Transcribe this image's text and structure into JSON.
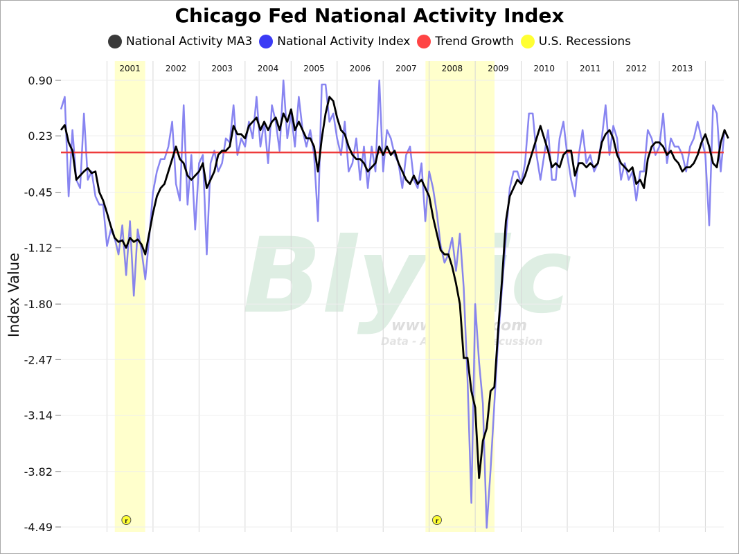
{
  "chart_data": {
    "type": "line",
    "title": "Chicago Fed National Activity Index",
    "ylabel": "Index Value",
    "xlabel": "",
    "ylim": [
      -4.49,
      0.9
    ],
    "yticks": [
      "0.90",
      "0.23",
      "-0.45",
      "-1.12",
      "-1.80",
      "-2.47",
      "-3.14",
      "-3.82",
      "-4.49"
    ],
    "x_range": [
      2000.0,
      2014.4
    ],
    "year_labels": [
      {
        "year": 2001,
        "label": "2001"
      },
      {
        "year": 2002,
        "label": "2002"
      },
      {
        "year": 2003,
        "label": "2003"
      },
      {
        "year": 2004,
        "label": "2004"
      },
      {
        "year": 2005,
        "label": "2005"
      },
      {
        "year": 2006,
        "label": "2006"
      },
      {
        "year": 2007,
        "label": "2007"
      },
      {
        "year": 2008,
        "label": "2008"
      },
      {
        "year": 2009,
        "label": "2009"
      },
      {
        "year": 2010,
        "label": "2010"
      },
      {
        "year": 2011,
        "label": "2011"
      },
      {
        "year": 2012,
        "label": "2012"
      },
      {
        "year": 2013,
        "label": "2013"
      }
    ],
    "grid": true,
    "legend_position": "top-center",
    "recessions": [
      {
        "start": 2001.17,
        "end": 2001.83,
        "marker": "r"
      },
      {
        "start": 2007.92,
        "end": 2009.42,
        "marker": "r"
      }
    ],
    "trend_growth": 0.03,
    "series": [
      {
        "name": "National Activity MA3",
        "color": "#000000"
      },
      {
        "name": "National Activity Index",
        "color": "#7b78f0"
      },
      {
        "name": "Trend Growth",
        "color": "#ee3b3b"
      },
      {
        "name": "U.S. Recessions",
        "color": "#ffff33"
      }
    ],
    "monthly": {
      "start": "2000-01",
      "index": [
        0.55,
        0.7,
        -0.5,
        0.3,
        -0.3,
        -0.4,
        0.5,
        -0.3,
        -0.2,
        -0.5,
        -0.6,
        -0.6,
        -1.1,
        -0.9,
        -1.0,
        -1.2,
        -0.85,
        -1.45,
        -0.8,
        -1.7,
        -0.9,
        -1.15,
        -1.5,
        -1.0,
        -0.45,
        -0.2,
        -0.05,
        -0.05,
        0.1,
        0.4,
        -0.35,
        -0.55,
        0.6,
        -0.6,
        0.0,
        -0.9,
        -0.1,
        0.0,
        -1.2,
        -0.1,
        0.05,
        -0.2,
        -0.1,
        0.2,
        0.15,
        0.6,
        0.0,
        0.2,
        0.1,
        0.4,
        0.2,
        0.7,
        0.1,
        0.4,
        -0.1,
        0.6,
        0.4,
        0.05,
        0.9,
        0.2,
        0.5,
        0.1,
        0.7,
        0.3,
        0.1,
        0.3,
        0.0,
        -0.8,
        0.85,
        0.85,
        0.4,
        0.5,
        0.2,
        0.0,
        0.4,
        -0.2,
        -0.1,
        0.2,
        -0.3,
        0.1,
        -0.4,
        0.1,
        -0.2,
        0.9,
        -0.2,
        0.3,
        0.2,
        0.0,
        -0.1,
        -0.4,
        0.0,
        0.1,
        -0.3,
        -0.4,
        -0.1,
        -0.8,
        -0.2,
        -0.4,
        -0.7,
        -1.1,
        -1.3,
        -1.2,
        -1.0,
        -1.4,
        -0.95,
        -1.6,
        -2.7,
        -4.2,
        -1.8,
        -2.5,
        -3.0,
        -4.5,
        -3.8,
        -3.0,
        -2.2,
        -1.6,
        -1.0,
        -0.4,
        -0.2,
        -0.2,
        -0.35,
        -0.1,
        0.5,
        0.5,
        0.0,
        -0.3,
        0.0,
        0.3,
        -0.3,
        -0.3,
        0.2,
        0.4,
        0.0,
        -0.3,
        -0.5,
        0.0,
        0.3,
        -0.1,
        0.0,
        -0.2,
        -0.1,
        0.2,
        0.6,
        0.0,
        0.35,
        0.2,
        -0.3,
        -0.1,
        -0.3,
        -0.2,
        -0.55,
        -0.2,
        -0.2,
        0.3,
        0.2,
        0.0,
        0.1,
        0.5,
        -0.1,
        0.2,
        0.1,
        0.1,
        0.0,
        -0.2,
        0.1,
        0.2,
        0.4,
        0.2,
        0.0,
        -0.85,
        0.6,
        0.5,
        -0.2,
        0.3
      ],
      "ma3": [
        0.3,
        0.36,
        0.15,
        0.05,
        -0.3,
        -0.25,
        -0.2,
        -0.16,
        -0.22,
        -0.2,
        -0.45,
        -0.55,
        -0.7,
        -0.86,
        -1.0,
        -1.05,
        -1.03,
        -1.12,
        -1.0,
        -1.05,
        -1.02,
        -1.08,
        -1.2,
        -0.95,
        -0.7,
        -0.5,
        -0.4,
        -0.35,
        -0.2,
        -0.05,
        0.1,
        -0.05,
        -0.1,
        -0.25,
        -0.3,
        -0.25,
        -0.2,
        -0.1,
        -0.4,
        -0.3,
        -0.2,
        0.0,
        0.05,
        0.05,
        0.1,
        0.35,
        0.25,
        0.25,
        0.2,
        0.35,
        0.4,
        0.45,
        0.3,
        0.4,
        0.3,
        0.4,
        0.45,
        0.3,
        0.5,
        0.4,
        0.55,
        0.3,
        0.4,
        0.3,
        0.2,
        0.2,
        0.1,
        -0.2,
        0.2,
        0.5,
        0.7,
        0.65,
        0.45,
        0.3,
        0.25,
        0.1,
        0.0,
        -0.05,
        -0.05,
        -0.1,
        -0.2,
        -0.15,
        -0.1,
        0.1,
        0.0,
        0.1,
        0.0,
        0.05,
        -0.1,
        -0.2,
        -0.3,
        -0.35,
        -0.25,
        -0.35,
        -0.3,
        -0.4,
        -0.5,
        -0.75,
        -0.95,
        -1.15,
        -1.2,
        -1.2,
        -1.35,
        -1.55,
        -1.8,
        -2.45,
        -2.45,
        -2.85,
        -3.05,
        -3.9,
        -3.45,
        -3.3,
        -2.85,
        -2.8,
        -2.1,
        -1.5,
        -0.8,
        -0.5,
        -0.4,
        -0.3,
        -0.35,
        -0.25,
        -0.1,
        0.05,
        0.2,
        0.35,
        0.2,
        0.05,
        -0.15,
        -0.1,
        -0.15,
        0.0,
        0.05,
        0.05,
        -0.25,
        -0.1,
        -0.1,
        -0.15,
        -0.1,
        -0.15,
        -0.1,
        0.15,
        0.25,
        0.3,
        0.2,
        0.0,
        -0.1,
        -0.15,
        -0.2,
        -0.15,
        -0.35,
        -0.3,
        -0.4,
        -0.05,
        0.1,
        0.15,
        0.15,
        0.1,
        0.0,
        0.05,
        -0.05,
        -0.1,
        -0.2,
        -0.15,
        -0.15,
        -0.1,
        0.0,
        0.15,
        0.25,
        0.1,
        -0.1,
        -0.15,
        0.15,
        0.3,
        0.2
      ]
    }
  }
}
